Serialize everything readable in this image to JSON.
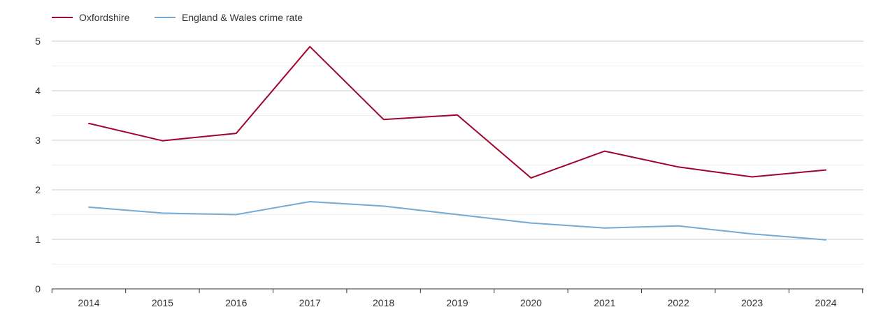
{
  "chart_data": {
    "type": "line",
    "title": "",
    "xlabel": "",
    "ylabel": "",
    "x": [
      "2014",
      "2015",
      "2016",
      "2017",
      "2018",
      "2019",
      "2020",
      "2021",
      "2022",
      "2023",
      "2024"
    ],
    "ylim": [
      0,
      5
    ],
    "yticks": [
      "0",
      "1",
      "2",
      "3",
      "4",
      "5"
    ],
    "grid": true,
    "legend": "top-left",
    "series": [
      {
        "name": "Oxfordshire",
        "color": "#a0052d",
        "values": [
          3.34,
          2.99,
          3.14,
          4.89,
          3.42,
          3.51,
          2.24,
          2.78,
          2.46,
          2.26,
          2.4
        ]
      },
      {
        "name": "England & Wales crime rate",
        "color": "#74aad3",
        "values": [
          1.65,
          1.53,
          1.5,
          1.76,
          1.67,
          1.5,
          1.33,
          1.23,
          1.27,
          1.11,
          0.99
        ]
      }
    ]
  }
}
